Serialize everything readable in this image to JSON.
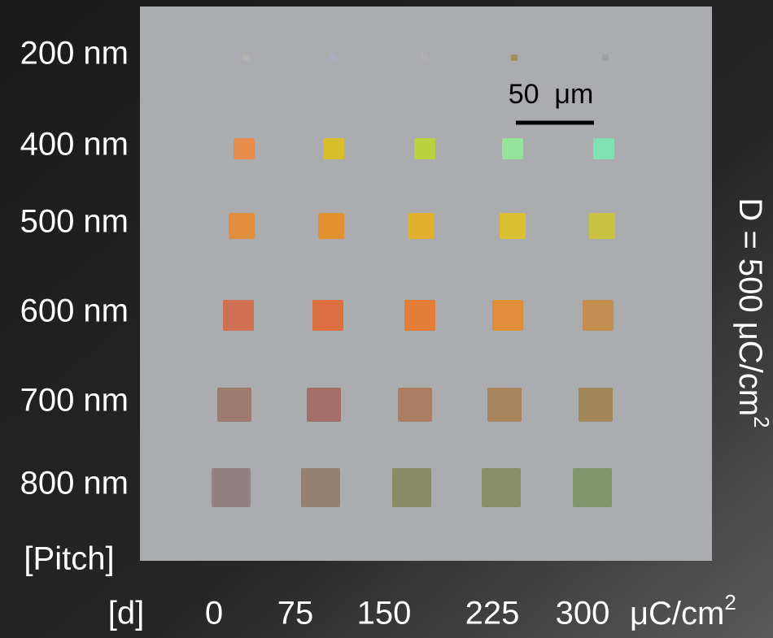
{
  "row_labels": [
    "200 nm",
    "400 nm",
    "500 nm",
    "600 nm",
    "700 nm",
    "800 nm"
  ],
  "row_axis_label": "[Pitch]",
  "column_axis_label": "[d]",
  "column_labels": [
    "0",
    "75",
    "150",
    "225",
    "300"
  ],
  "column_unit": {
    "text": "μC/cm",
    "superscript": "2"
  },
  "scale_bar": {
    "label": "50  μm"
  },
  "side_label": {
    "text": "D = 500 μC/cm",
    "superscript": "2"
  }
}
